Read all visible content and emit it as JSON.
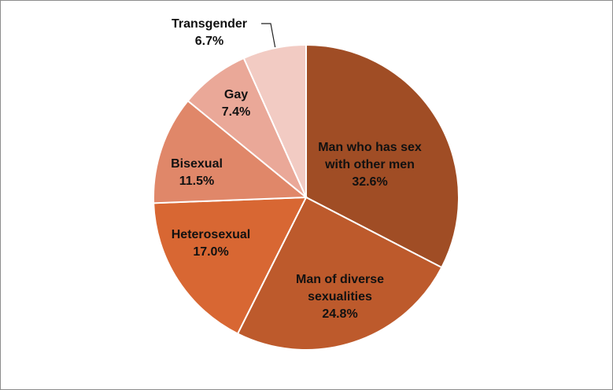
{
  "chart_data": {
    "type": "pie",
    "categories": [
      "Man who has sex with other men",
      "Man of diverse sexualities",
      "Heterosexual",
      "Bisexual",
      "Gay",
      "Transgender"
    ],
    "values": [
      32.6,
      24.8,
      17.0,
      11.5,
      7.4,
      6.7
    ],
    "value_labels": [
      "32.6%",
      "24.8%",
      "17.0%",
      "11.5%",
      "7.4%",
      "6.7%"
    ],
    "colors": [
      "#a04d25",
      "#bd5a2c",
      "#d86733",
      "#e08769",
      "#eaa898",
      "#f2cbc3"
    ]
  }
}
